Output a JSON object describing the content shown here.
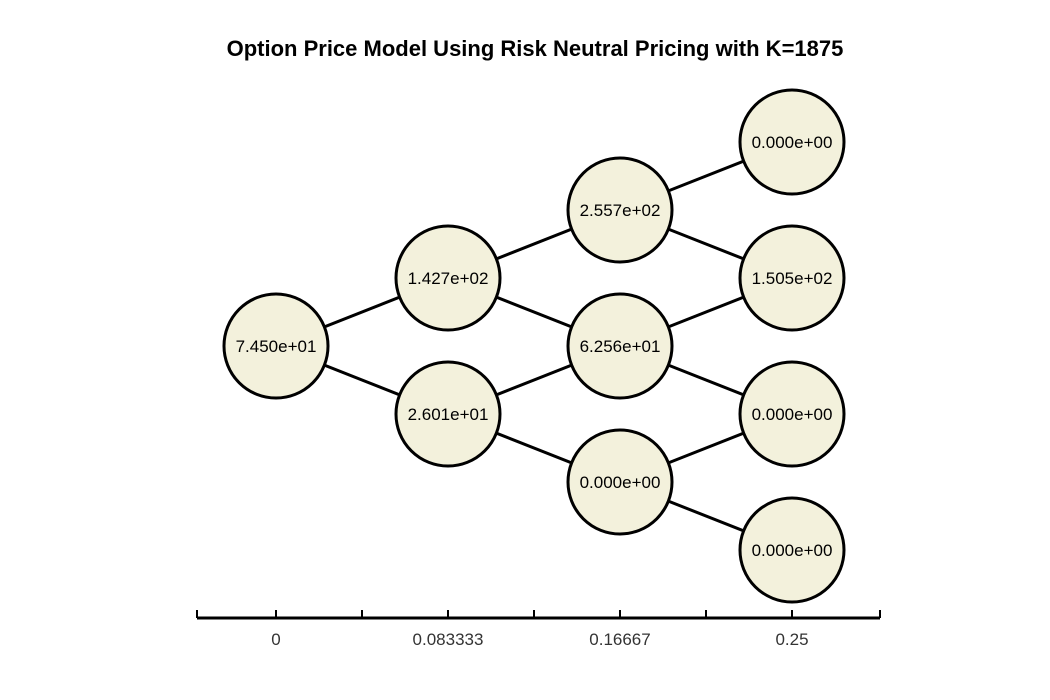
{
  "title": "Option Price Model Using Risk Neutral Pricing with K=1875",
  "colors": {
    "node_fill": "#f3f1dc",
    "node_stroke": "#000000",
    "edge": "#000000",
    "axis": "#000000"
  },
  "time_axis": [
    "0",
    "0.083333",
    "0.16667",
    "0.25"
  ],
  "tree": [
    [
      "7.450e+01"
    ],
    [
      "1.427e+02",
      "2.601e+01"
    ],
    [
      "2.557e+02",
      "6.256e+01",
      "0.000e+00"
    ],
    [
      "0.000e+00",
      "1.505e+02",
      "0.000e+00",
      "0.000e+00"
    ]
  ]
}
